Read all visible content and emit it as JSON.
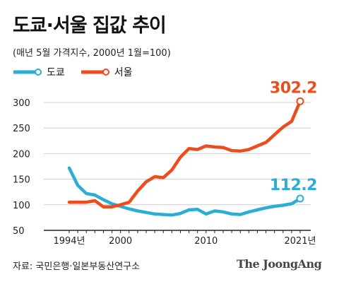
{
  "title": "도쿄·서울 집값 추이",
  "subtitle": "(매년 5월 가격지수, 2000년 1월=100)",
  "source": "자료: 국민은행·일본부동산연구소",
  "brand": "The JoongAng",
  "colors": {
    "tokyo": "#2aaed3",
    "seoul": "#ee4c1d",
    "grid": "#cfcfcf",
    "axis": "#222222"
  },
  "chart_data": {
    "type": "line",
    "x": [
      1994,
      1995,
      1996,
      1997,
      1998,
      1999,
      2000,
      2001,
      2002,
      2003,
      2004,
      2005,
      2006,
      2007,
      2008,
      2009,
      2010,
      2011,
      2012,
      2013,
      2014,
      2015,
      2016,
      2017,
      2018,
      2019,
      2020,
      2021
    ],
    "ylim": [
      50,
      310
    ],
    "yticks": [
      50,
      100,
      150,
      200,
      250,
      300
    ],
    "xtick_labels": [
      {
        "x": 1994,
        "label": "1994년"
      },
      {
        "x": 2000,
        "label": "2000"
      },
      {
        "x": 2010,
        "label": "2010"
      },
      {
        "x": 2021,
        "label": "2021년"
      }
    ],
    "series": [
      {
        "name": "도쿄",
        "color": "#2aaed3",
        "values": [
          172,
          138,
          122,
          119,
          110,
          102,
          97,
          92,
          88,
          85,
          82,
          81,
          80,
          83,
          90,
          91,
          82,
          88,
          86,
          82,
          81,
          86,
          90,
          94,
          97,
          99,
          102,
          112.2
        ],
        "end_label": "112.2"
      },
      {
        "name": "서울",
        "color": "#ee4c1d",
        "values": [
          105,
          105,
          105,
          108,
          96,
          96,
          100,
          105,
          127,
          145,
          155,
          153,
          168,
          193,
          210,
          208,
          215,
          213,
          212,
          206,
          205,
          208,
          215,
          222,
          237,
          252,
          263,
          302.2
        ],
        "end_label": "302.2"
      }
    ]
  }
}
